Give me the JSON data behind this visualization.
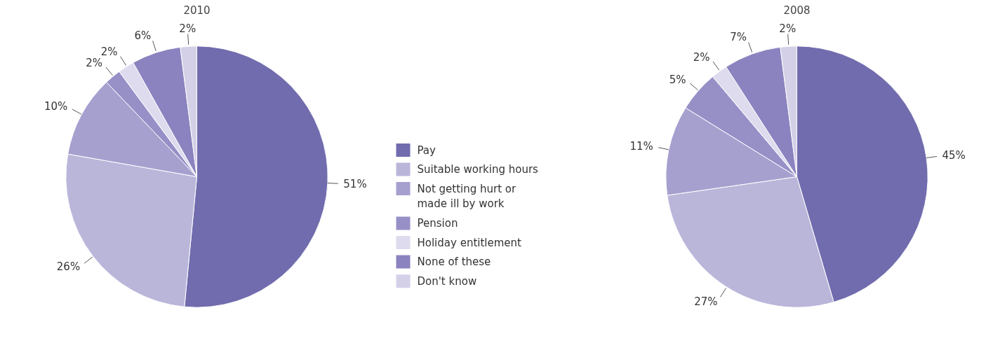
{
  "chart_data": [
    {
      "type": "pie",
      "title": "2010",
      "legend": "right",
      "categories": [
        "Pay",
        "Suitable working hours",
        "Not getting hurt or made ill by work",
        "Pension",
        "Holiday entitlement",
        "None of these",
        "Don't know"
      ],
      "values": [
        51,
        26,
        10,
        2,
        2,
        6,
        2
      ],
      "value_labels": [
        "51%",
        "26%",
        "10%",
        "2%",
        "2%",
        "6%",
        "2%"
      ],
      "colors": [
        "#716cae",
        "#bab6da",
        "#a6a0cf",
        "#9690c7",
        "#dedbee",
        "#8a83bf",
        "#d3d0e7"
      ]
    },
    {
      "type": "pie",
      "title": "2008",
      "categories": [
        null,
        null,
        null,
        null,
        null,
        null,
        null
      ],
      "values": [
        45,
        27,
        11,
        5,
        2,
        7,
        2
      ],
      "value_labels": [
        "45%",
        "27%",
        "11%",
        "5%",
        "2%",
        "7%",
        "2%"
      ],
      "colors": [
        "#716cae",
        "#bab6da",
        "#a6a0cf",
        "#9690c7",
        "#dedbee",
        "#8a83bf",
        "#d3d0e7"
      ]
    }
  ]
}
